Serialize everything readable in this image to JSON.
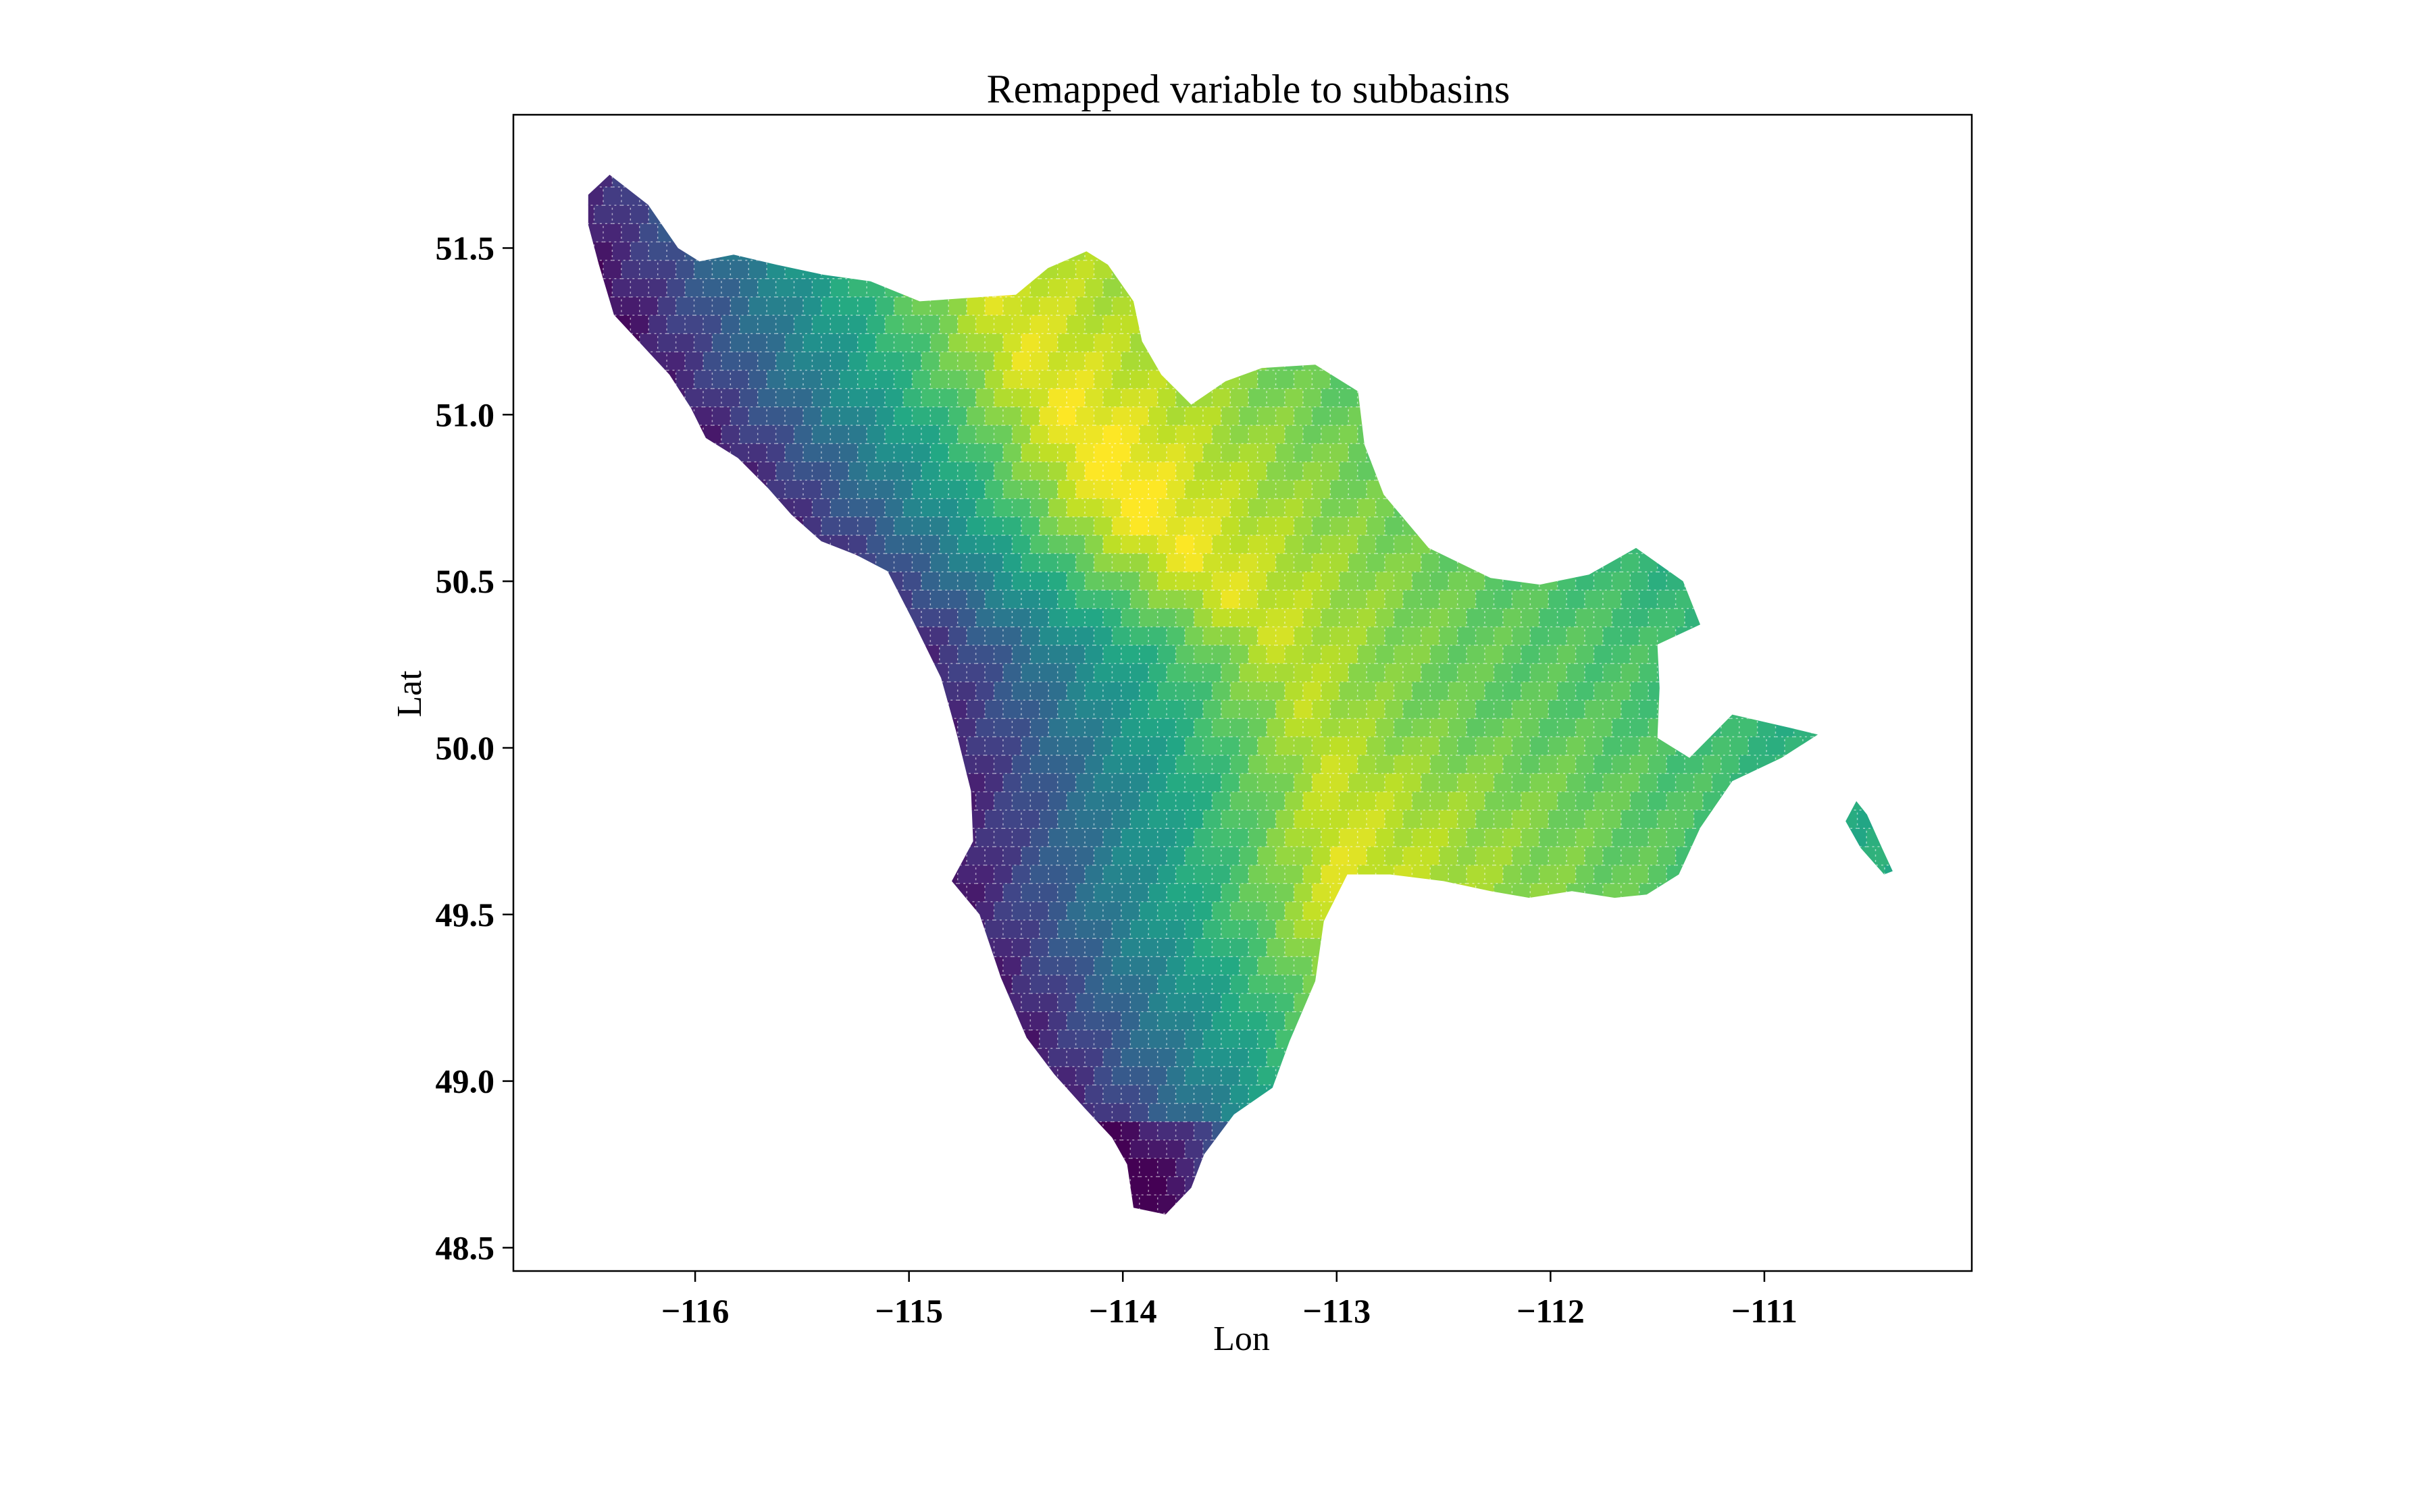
{
  "map": {
    "title": "Remapped variable to subbasins",
    "xlabel": "Lon",
    "ylabel": "Lat",
    "x_range": [
      -116.85,
      -110.03
    ],
    "y_range": [
      48.43,
      51.9
    ],
    "x_ticks": [
      {
        "value": -116,
        "label": "−116"
      },
      {
        "value": -115,
        "label": "−115"
      },
      {
        "value": -114,
        "label": "−114"
      },
      {
        "value": -113,
        "label": "−113"
      },
      {
        "value": -112,
        "label": "−112"
      },
      {
        "value": -111,
        "label": "−111"
      }
    ],
    "y_ticks": [
      {
        "value": 48.5,
        "label": "48.5"
      },
      {
        "value": 49.0,
        "label": "49.0"
      },
      {
        "value": 49.5,
        "label": "49.5"
      },
      {
        "value": 50.0,
        "label": "50.0"
      },
      {
        "value": 50.5,
        "label": "50.5"
      },
      {
        "value": 51.0,
        "label": "51.0"
      },
      {
        "value": 51.5,
        "label": "51.5"
      }
    ],
    "colormap": "viridis",
    "colors": {
      "dark_purple": "#482173",
      "indigo": "#433e85",
      "blue_teal": "#38598c",
      "teal": "#2a788e",
      "teal_green": "#21918c",
      "green": "#35b779",
      "light_green": "#6ccd5a",
      "lime": "#b5de2b",
      "yellow": "#d9e239"
    }
  }
}
